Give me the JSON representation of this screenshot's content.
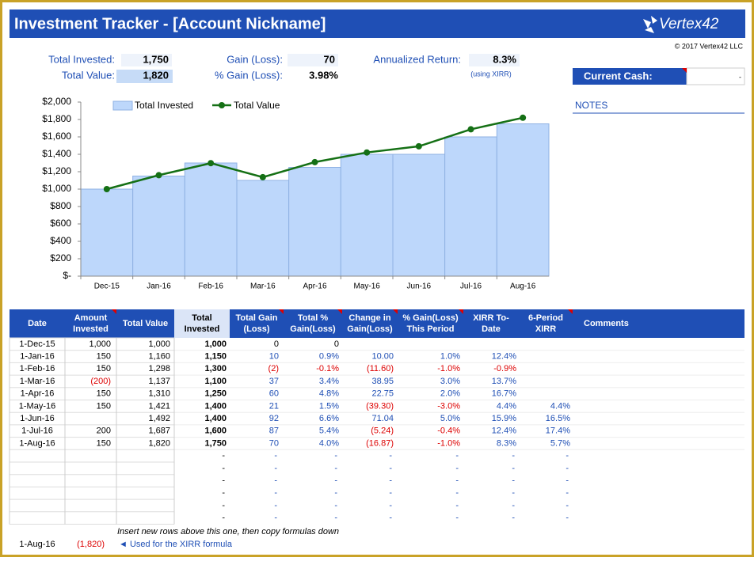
{
  "header": {
    "title": "Investment Tracker - [Account Nickname]",
    "logo": "Vertex42",
    "copyright": "© 2017 Vertex42 LLC"
  },
  "summary": {
    "items": [
      {
        "label": "Total Invested:",
        "value": "1,750"
      },
      {
        "label": "Gain (Loss):",
        "value": "70"
      },
      {
        "label": "Annualized Return:",
        "value": "8.3%"
      },
      {
        "label": "Total Value:",
        "value": "1,820"
      },
      {
        "label": "% Gain (Loss):",
        "value": "3.98%"
      }
    ],
    "xirr_note": "(using XIRR)",
    "cash_label": "Current Cash:",
    "cash_value": "-",
    "notes": "NOTES"
  },
  "chart_data": {
    "type": "bar",
    "categories": [
      "Dec-15",
      "Jan-16",
      "Feb-16",
      "Mar-16",
      "Apr-16",
      "May-16",
      "Jun-16",
      "Jul-16",
      "Aug-16"
    ],
    "series": [
      {
        "name": "Total Invested",
        "type": "bar",
        "color": "#bdd7fb",
        "values": [
          1000,
          1150,
          1300,
          1100,
          1250,
          1400,
          1400,
          1600,
          1750
        ]
      },
      {
        "name": "Total Value",
        "type": "line",
        "color": "#157015",
        "values": [
          1000,
          1160,
          1298,
          1137,
          1310,
          1421,
          1492,
          1687,
          1820
        ]
      }
    ],
    "ylim": [
      0,
      2000
    ],
    "yticks": [
      {
        "value": 0,
        "label": "$-"
      },
      {
        "value": 200,
        "label": "$200"
      },
      {
        "value": 400,
        "label": "$400"
      },
      {
        "value": 600,
        "label": "$600"
      },
      {
        "value": 800,
        "label": "$800"
      },
      {
        "value": 1000,
        "label": "$1,000"
      },
      {
        "value": 1200,
        "label": "$1,200"
      },
      {
        "value": 1400,
        "label": "$1,400"
      },
      {
        "value": 1600,
        "label": "$1,600"
      },
      {
        "value": 1800,
        "label": "$1,800"
      },
      {
        "value": 2000,
        "label": "$2,000"
      }
    ],
    "legend": "top"
  },
  "table": {
    "headers": [
      [
        "Date"
      ],
      [
        "Amount",
        "Invested"
      ],
      [
        "Total Value"
      ],
      [
        "Total",
        "Invested"
      ],
      [
        "Total Gain",
        "(Loss)"
      ],
      [
        "Total %",
        "Gain(Loss)"
      ],
      [
        "Change in",
        "Gain(Loss)"
      ],
      [
        "% Gain(Loss)",
        "This Period"
      ],
      [
        "XIRR To-",
        "Date"
      ],
      [
        "6-Period",
        "XIRR"
      ],
      [
        "Comments"
      ]
    ],
    "rows": [
      [
        "1-Dec-15",
        "1,000",
        "1,000",
        "1,000",
        "0",
        "0",
        "",
        "",
        "",
        ""
      ],
      [
        "1-Jan-16",
        "150",
        "1,160",
        "1,150",
        "10",
        "0.9%",
        "10.00",
        "1.0%",
        "12.4%",
        ""
      ],
      [
        "1-Feb-16",
        "150",
        "1,298",
        "1,300",
        "(2)",
        "-0.1%",
        "(11.60)",
        "-1.0%",
        "-0.9%",
        ""
      ],
      [
        "1-Mar-16",
        "(200)",
        "1,137",
        "1,100",
        "37",
        "3.4%",
        "38.95",
        "3.0%",
        "13.7%",
        ""
      ],
      [
        "1-Apr-16",
        "150",
        "1,310",
        "1,250",
        "60",
        "4.8%",
        "22.75",
        "2.0%",
        "16.7%",
        ""
      ],
      [
        "1-May-16",
        "150",
        "1,421",
        "1,400",
        "21",
        "1.5%",
        "(39.30)",
        "-3.0%",
        "4.4%",
        "4.4%"
      ],
      [
        "1-Jun-16",
        "",
        "1,492",
        "1,400",
        "92",
        "6.6%",
        "71.04",
        "5.0%",
        "15.9%",
        "16.5%"
      ],
      [
        "1-Jul-16",
        "200",
        "1,687",
        "1,600",
        "87",
        "5.4%",
        "(5.24)",
        "-0.4%",
        "12.4%",
        "17.4%"
      ],
      [
        "1-Aug-16",
        "150",
        "1,820",
        "1,750",
        "70",
        "4.0%",
        "(16.87)",
        "-1.0%",
        "8.3%",
        "5.7%"
      ]
    ],
    "empty_rows": [
      [
        "-",
        "-",
        "-",
        "-",
        "-",
        "-",
        "-"
      ],
      [
        "-",
        "-",
        "-",
        "-",
        "-",
        "-",
        "-"
      ],
      [
        "-",
        "-",
        "-",
        "-",
        "-",
        "-",
        "-"
      ],
      [
        "-",
        "-",
        "-",
        "-",
        "-",
        "-",
        "-"
      ],
      [
        "-",
        "-",
        "-",
        "-",
        "-",
        "-",
        "-"
      ],
      [
        "-",
        "-",
        "-",
        "-",
        "-",
        "-",
        "-"
      ]
    ],
    "insert_note": "Insert new rows above this one, then copy formulas down",
    "footer": {
      "date": "1-Aug-16",
      "value": "(1,820)",
      "note": "◄ Used for the XIRR formula"
    }
  }
}
